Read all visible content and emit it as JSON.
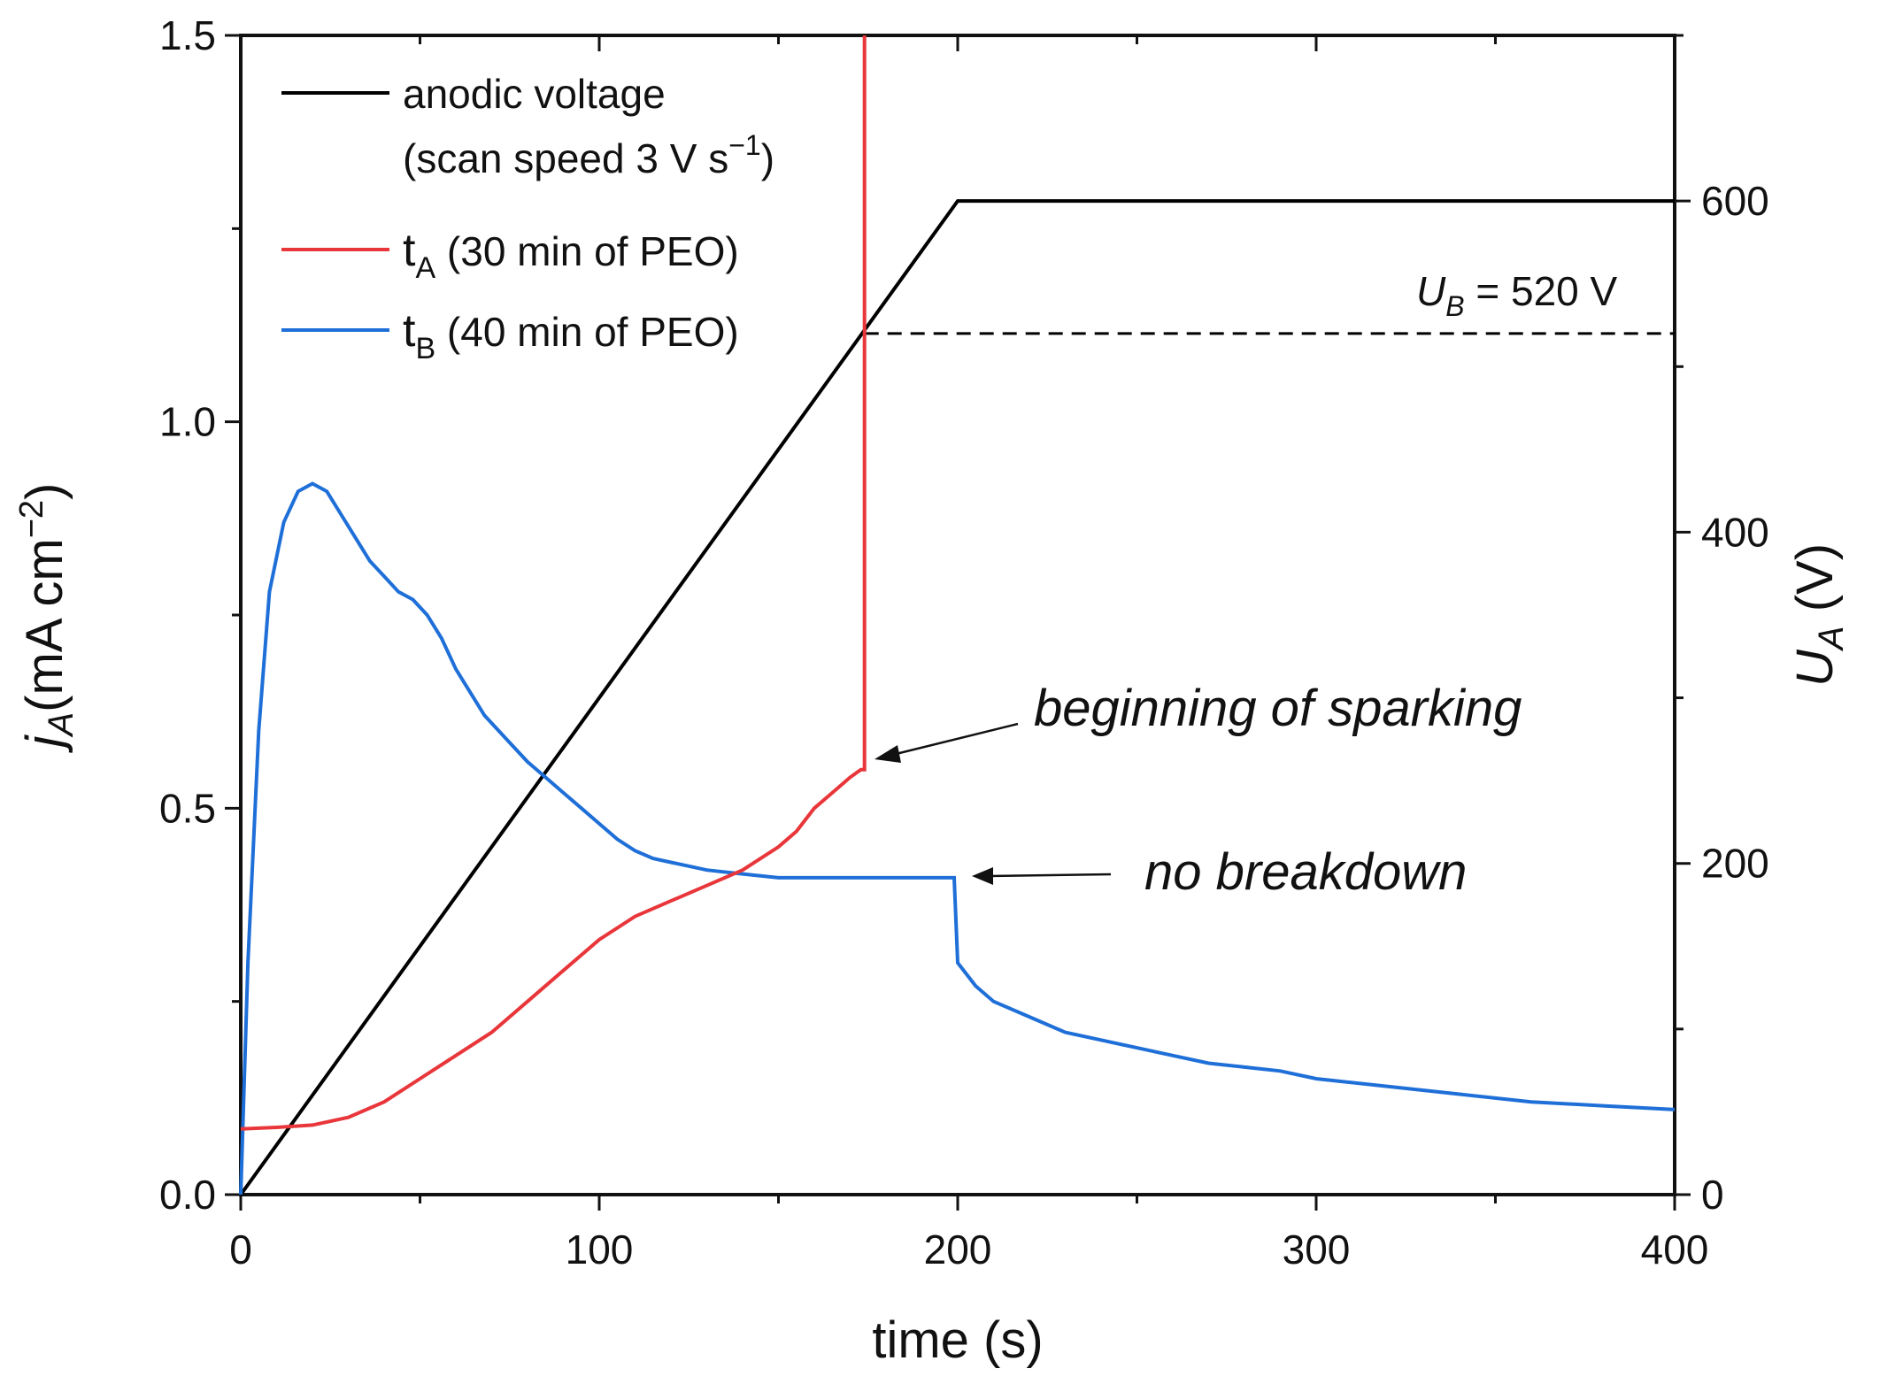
{
  "chart_data": {
    "type": "line",
    "xlabel": "time (s)",
    "ylabel_left": {
      "main": "j",
      "sub": "A",
      "unit": "(mA cm",
      "exp": "−2",
      "close": ")"
    },
    "ylabel_right": {
      "main": "U",
      "sub": "A",
      "unit": "(V)"
    },
    "xlim": [
      0,
      400
    ],
    "ylim_left": [
      0,
      1.5
    ],
    "ylim_right": [
      0,
      700
    ],
    "x_ticks": [
      0,
      100,
      200,
      300,
      400
    ],
    "x_tick_labels": [
      "0",
      "100",
      "200",
      "300",
      "400"
    ],
    "y_left_ticks": [
      0,
      0.5,
      1.0,
      1.5
    ],
    "y_left_tick_labels": [
      "0.0",
      "0.5",
      "1.0",
      "1.5"
    ],
    "y_right_ticks": [
      0,
      200,
      400,
      600
    ],
    "y_right_tick_labels": [
      "0",
      "200",
      "400",
      "600"
    ],
    "legend": {
      "position": "top-left",
      "entries": [
        {
          "key": "voltage",
          "line1": "anodic voltage",
          "line2_pre": "(scan speed 3 V s",
          "line2_exp": "−1",
          "line2_post": ")"
        },
        {
          "key": "tA",
          "main": "t",
          "sub": "A",
          "rest": " (30 min of PEO)"
        },
        {
          "key": "tB",
          "main": "t",
          "sub": "B",
          "rest": " (40 min of PEO)"
        }
      ]
    },
    "colors": {
      "voltage": "#000000",
      "tA": "#e8363a",
      "tB": "#1f6fd8",
      "reference": "#000000"
    },
    "series": [
      {
        "name": "anodic voltage",
        "axis": "right",
        "x": [
          0,
          200,
          400
        ],
        "y": [
          0,
          600,
          600
        ]
      },
      {
        "name": "tA (30 min of PEO)",
        "axis": "left",
        "x": [
          0,
          10,
          20,
          30,
          40,
          50,
          60,
          70,
          80,
          90,
          100,
          110,
          120,
          130,
          140,
          150,
          155,
          160,
          165,
          170,
          173,
          174,
          174
        ],
        "y": [
          0.085,
          0.087,
          0.09,
          0.1,
          0.12,
          0.15,
          0.18,
          0.21,
          0.25,
          0.29,
          0.33,
          0.36,
          0.38,
          0.4,
          0.42,
          0.45,
          0.47,
          0.5,
          0.52,
          0.54,
          0.55,
          0.55,
          1.5
        ]
      },
      {
        "name": "tB (40 min of PEO)",
        "axis": "left",
        "x": [
          0,
          2,
          5,
          8,
          12,
          16,
          20,
          24,
          28,
          32,
          36,
          40,
          44,
          48,
          52,
          56,
          60,
          64,
          68,
          72,
          76,
          80,
          85,
          90,
          95,
          100,
          105,
          110,
          115,
          120,
          125,
          130,
          140,
          150,
          160,
          170,
          180,
          190,
          199,
          200,
          205,
          210,
          220,
          230,
          240,
          250,
          260,
          270,
          280,
          290,
          300,
          320,
          340,
          360,
          380,
          400
        ],
        "y": [
          0.0,
          0.3,
          0.6,
          0.78,
          0.87,
          0.91,
          0.92,
          0.91,
          0.88,
          0.85,
          0.82,
          0.8,
          0.78,
          0.77,
          0.75,
          0.72,
          0.68,
          0.65,
          0.62,
          0.6,
          0.58,
          0.56,
          0.54,
          0.52,
          0.5,
          0.48,
          0.46,
          0.445,
          0.435,
          0.43,
          0.425,
          0.42,
          0.415,
          0.41,
          0.41,
          0.41,
          0.41,
          0.41,
          0.41,
          0.3,
          0.27,
          0.25,
          0.23,
          0.21,
          0.2,
          0.19,
          0.18,
          0.17,
          0.165,
          0.16,
          0.15,
          0.14,
          0.13,
          0.12,
          0.115,
          0.11
        ]
      }
    ],
    "reference_line": {
      "axis": "right",
      "y": 520,
      "x_from": 174,
      "x_to": 400,
      "style": "dashed",
      "label_main": "U",
      "label_sub": "B",
      "label_rest": " = 520 V"
    },
    "annotations": [
      {
        "text": "beginning of sparking",
        "point_x": 174,
        "point_y": 0.56,
        "axis": "left"
      },
      {
        "text": "no breakdown",
        "point_x": 200,
        "point_y": 0.41,
        "axis": "left"
      }
    ]
  }
}
